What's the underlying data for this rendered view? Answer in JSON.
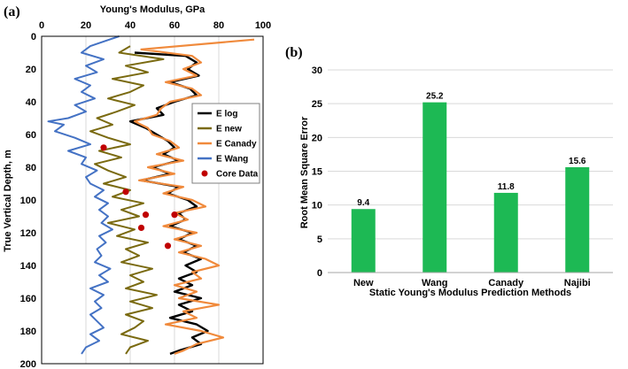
{
  "colors": {
    "e_log": "#000000",
    "e_new": "#7a6a10",
    "e_canady": "#f08a3c",
    "e_wang": "#4472c4",
    "core": "#c00000",
    "bar": "#1db954",
    "grid": "#d9d9d9"
  },
  "chart_data": [
    {
      "panel": "(a)",
      "type": "line",
      "title": "Young's Modulus, GPa",
      "xlabel": "Young's Modulus, GPa",
      "ylabel": "True Vertical Depth, m",
      "xlim": [
        0,
        100
      ],
      "ylim": [
        0,
        200
      ],
      "y_inverted": true,
      "x_axis_position": "top",
      "x_ticks": [
        0,
        20,
        40,
        60,
        80,
        100
      ],
      "y_ticks": [
        0,
        20,
        40,
        60,
        80,
        100,
        120,
        140,
        160,
        180,
        200
      ],
      "grid": "vertical",
      "legend_position": "right",
      "series": [
        {
          "name": "E log",
          "depth": [
            10,
            12,
            16,
            20,
            24,
            28,
            32,
            36,
            40,
            44,
            48,
            52,
            56,
            60,
            64,
            68,
            72,
            76,
            80,
            84,
            88,
            92,
            96,
            100,
            104,
            108,
            112,
            116,
            120,
            124,
            128,
            132,
            136,
            140,
            144,
            148,
            152,
            156,
            160,
            164,
            168,
            172,
            176,
            180,
            184,
            188,
            192,
            194
          ],
          "values": [
            42,
            65,
            70,
            66,
            71,
            58,
            67,
            70,
            60,
            52,
            55,
            40,
            47,
            52,
            57,
            60,
            55,
            62,
            50,
            58,
            45,
            62,
            57,
            66,
            70,
            62,
            65,
            58,
            68,
            62,
            70,
            64,
            72,
            65,
            70,
            62,
            68,
            60,
            72,
            62,
            68,
            58,
            70,
            75,
            68,
            72,
            62,
            58
          ]
        },
        {
          "name": "E new",
          "depth": [
            6,
            10,
            14,
            18,
            22,
            26,
            30,
            34,
            38,
            42,
            46,
            50,
            54,
            58,
            62,
            66,
            70,
            74,
            78,
            82,
            86,
            90,
            94,
            98,
            102,
            106,
            110,
            114,
            118,
            122,
            126,
            130,
            134,
            138,
            142,
            146,
            150,
            154,
            158,
            162,
            166,
            170,
            174,
            178,
            182,
            186,
            190,
            194
          ],
          "values": [
            40,
            35,
            55,
            38,
            48,
            32,
            46,
            40,
            30,
            42,
            34,
            25,
            32,
            22,
            30,
            40,
            26,
            36,
            24,
            30,
            38,
            28,
            40,
            32,
            46,
            36,
            44,
            30,
            42,
            34,
            48,
            38,
            44,
            36,
            50,
            40,
            46,
            38,
            52,
            40,
            50,
            38,
            46,
            42,
            36,
            48,
            40,
            38
          ]
        },
        {
          "name": "E Canady",
          "depth": [
            2,
            8,
            12,
            16,
            20,
            24,
            28,
            32,
            36,
            40,
            44,
            48,
            52,
            56,
            60,
            64,
            68,
            72,
            76,
            80,
            84,
            88,
            92,
            96,
            100,
            104,
            108,
            112,
            116,
            120,
            124,
            128,
            132,
            136,
            140,
            144,
            148,
            152,
            156,
            160,
            164,
            168,
            172,
            176,
            180,
            184,
            188,
            192,
            194
          ],
          "values": [
            96,
            45,
            68,
            72,
            64,
            70,
            56,
            68,
            72,
            58,
            54,
            52,
            42,
            48,
            50,
            58,
            62,
            52,
            64,
            48,
            60,
            44,
            64,
            55,
            68,
            74,
            60,
            66,
            55,
            70,
            60,
            72,
            62,
            74,
            80,
            68,
            72,
            60,
            70,
            62,
            80,
            64,
            70,
            56,
            72,
            82,
            70,
            64,
            60
          ]
        },
        {
          "name": "E Wang",
          "depth": [
            0,
            6,
            10,
            14,
            18,
            22,
            26,
            30,
            34,
            38,
            42,
            46,
            50,
            52,
            54,
            58,
            62,
            66,
            70,
            74,
            78,
            82,
            86,
            90,
            94,
            98,
            102,
            106,
            110,
            114,
            118,
            122,
            126,
            130,
            134,
            138,
            142,
            146,
            150,
            154,
            158,
            162,
            166,
            170,
            174,
            178,
            182,
            186,
            190,
            194
          ],
          "values": [
            35,
            22,
            18,
            28,
            20,
            25,
            15,
            22,
            18,
            24,
            15,
            20,
            12,
            3,
            10,
            6,
            15,
            22,
            12,
            20,
            18,
            25,
            20,
            22,
            28,
            24,
            30,
            26,
            30,
            27,
            32,
            26,
            29,
            25,
            27,
            24,
            31,
            26,
            30,
            22,
            28,
            24,
            27,
            22,
            25,
            28,
            22,
            26,
            20,
            18
          ]
        }
      ],
      "core_data": {
        "name": "Core Data",
        "x": [
          28,
          38,
          47,
          60,
          45,
          57
        ],
        "depth": [
          68,
          95,
          109,
          109,
          117,
          128
        ]
      }
    },
    {
      "panel": "(b)",
      "type": "bar",
      "categories": [
        "New",
        "Wang",
        "Canady",
        "Najibi"
      ],
      "values": [
        9.4,
        25.2,
        11.8,
        15.6
      ],
      "value_labels": [
        "9.4",
        "25.2",
        "11.8",
        "15.6"
      ],
      "xlabel": "Static Young's Modulus Prediction Methods",
      "ylabel": "Root Mean Square  Error",
      "ylim": [
        0,
        30
      ],
      "y_ticks": [
        0,
        5,
        10,
        15,
        20,
        25,
        30
      ],
      "grid": "horizontal"
    }
  ]
}
